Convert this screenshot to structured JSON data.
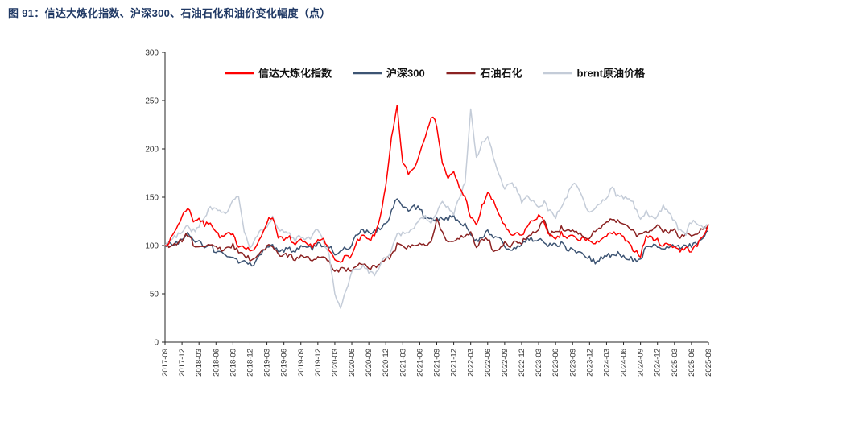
{
  "figure": {
    "title": "图 91：信达大炼化指数、沪深300、石油石化和油价变化幅度（点）"
  },
  "chart_data": {
    "type": "line",
    "title": "",
    "xlabel": "",
    "ylabel": "",
    "ylim": [
      0,
      300
    ],
    "y_ticks": [
      0,
      50,
      100,
      150,
      200,
      250,
      300
    ],
    "grid": false,
    "legend_position": "top",
    "x_frequency": "monthly",
    "x_start": "2017-09",
    "x_end": "2025-09",
    "x_tick_labels": [
      "2017-09",
      "2017-12",
      "2018-03",
      "2018-06",
      "2018-09",
      "2018-12",
      "2019-03",
      "2019-06",
      "2019-09",
      "2019-12",
      "2020-03",
      "2020-06",
      "2020-09",
      "2020-12",
      "2021-03",
      "2021-06",
      "2021-09",
      "2021-12",
      "2022-03",
      "2022-06",
      "2022-09",
      "2022-12",
      "2023-03",
      "2023-06",
      "2023-09",
      "2023-12",
      "2024-03",
      "2024-06",
      "2024-09",
      "2024-12",
      "2025-03",
      "2025-06",
      "2025-09"
    ],
    "axis_color": "#262626",
    "series": [
      {
        "name": "信达大炼化指数",
        "color": "#FE0000",
        "values": [
          100,
          106,
          118,
          130,
          140,
          126,
          128,
          121,
          125,
          114,
          108,
          112,
          110,
          100,
          100,
          95,
          96,
          110,
          125,
          130,
          110,
          105,
          108,
          100,
          105,
          100,
          100,
          105,
          105,
          95,
          85,
          85,
          88,
          90,
          104,
          110,
          105,
          110,
          130,
          160,
          210,
          243,
          185,
          175,
          180,
          196,
          215,
          234,
          225,
          185,
          170,
          175,
          160,
          150,
          130,
          120,
          140,
          155,
          145,
          133,
          120,
          110,
          112,
          110,
          120,
          126,
          131,
          124,
          110,
          105,
          112,
          108,
          110,
          105,
          108,
          105,
          100,
          108,
          110,
          112,
          112,
          108,
          100,
          95,
          90,
          110,
          108,
          105,
          100,
          102,
          99,
          95,
          97,
          95,
          100,
          110,
          122
        ]
      },
      {
        "name": "沪深300",
        "color": "#3D5473",
        "values": [
          100,
          102,
          103,
          105,
          112,
          105,
          103,
          100,
          100,
          93,
          92,
          88,
          88,
          82,
          83,
          80,
          82,
          92,
          97,
          100,
          93,
          95,
          96,
          94,
          98,
          98,
          97,
          101,
          99,
          99,
          92,
          95,
          97,
          101,
          113,
          115,
          113,
          115,
          118,
          123,
          135,
          150,
          138,
          138,
          140,
          138,
          128,
          128,
          127,
          128,
          128,
          130,
          123,
          122,
          112,
          105,
          108,
          115,
          110,
          108,
          100,
          95,
          98,
          101,
          107,
          106,
          105,
          104,
          100,
          100,
          102,
          97,
          95,
          92,
          90,
          87,
          83,
          88,
          90,
          90,
          92,
          89,
          87,
          85,
          84,
          100,
          100,
          100,
          97,
          100,
          100,
          97,
          99,
          100,
          103,
          108,
          115
        ]
      },
      {
        "name": "石油石化",
        "color": "#8B2222",
        "values": [
          100,
          100,
          103,
          105,
          112,
          102,
          98,
          100,
          103,
          98,
          96,
          98,
          100,
          93,
          90,
          86,
          88,
          95,
          98,
          100,
          92,
          90,
          90,
          86,
          90,
          87,
          86,
          88,
          88,
          82,
          74,
          75,
          75,
          75,
          80,
          80,
          77,
          77,
          82,
          85,
          90,
          100,
          100,
          98,
          100,
          102,
          100,
          105,
          128,
          113,
          105,
          103,
          108,
          110,
          112,
          100,
          105,
          108,
          95,
          98,
          102,
          98,
          105,
          103,
          110,
          112,
          118,
          125,
          112,
          113,
          118,
          115,
          115,
          112,
          110,
          108,
          115,
          120,
          123,
          128,
          125,
          122,
          118,
          112,
          110,
          115,
          115,
          120,
          115,
          113,
          115,
          108,
          110,
          112,
          113,
          116,
          122
        ]
      },
      {
        "name": "brent原油价格",
        "color": "#C4CCD8",
        "values": [
          100,
          105,
          110,
          115,
          120,
          115,
          120,
          130,
          140,
          138,
          135,
          135,
          145,
          152,
          115,
          98,
          107,
          115,
          120,
          128,
          115,
          115,
          112,
          105,
          110,
          107,
          110,
          117,
          105,
          90,
          50,
          37,
          55,
          72,
          75,
          78,
          72,
          70,
          80,
          88,
          95,
          110,
          112,
          115,
          120,
          128,
          130,
          125,
          135,
          145,
          140,
          132,
          150,
          165,
          240,
          190,
          205,
          215,
          190,
          175,
          160,
          165,
          160,
          145,
          150,
          145,
          140,
          145,
          135,
          130,
          140,
          150,
          165,
          160,
          145,
          135,
          140,
          145,
          150,
          160,
          150,
          150,
          150,
          140,
          128,
          135,
          130,
          130,
          140,
          133,
          125,
          115,
          113,
          125,
          122,
          118,
          120
        ]
      }
    ]
  }
}
